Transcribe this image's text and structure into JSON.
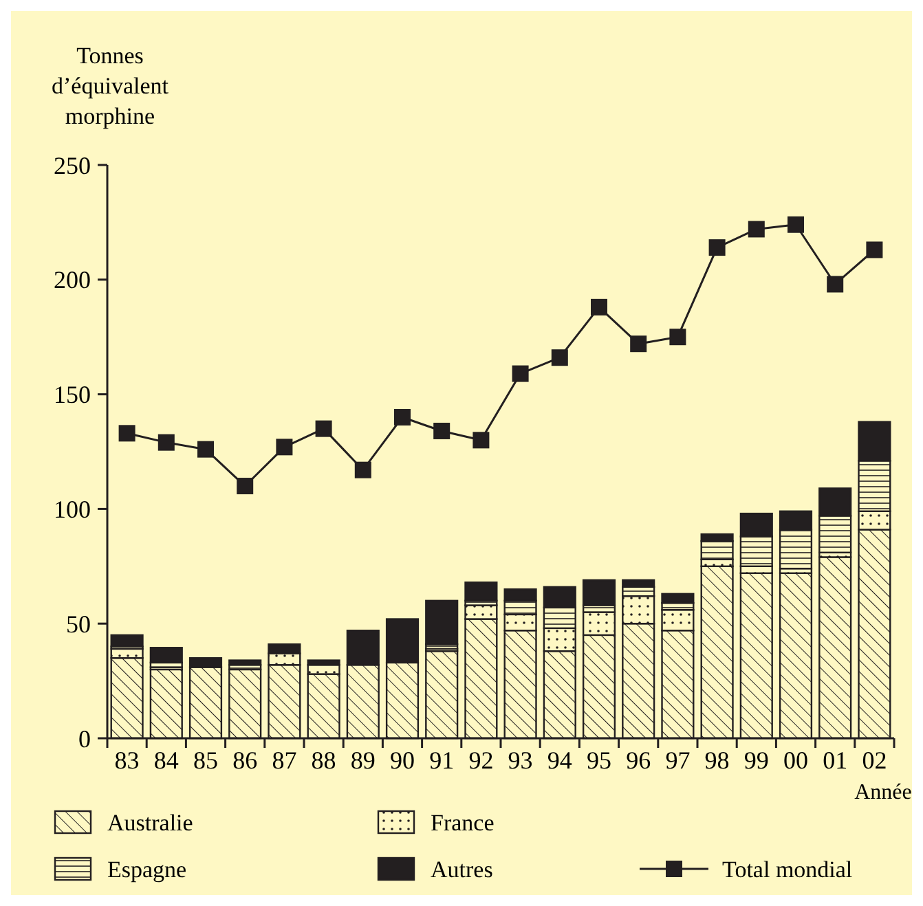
{
  "chart_data": {
    "type": "bar",
    "stacked": true,
    "ylabel": "Tonnes d’équivalent morphine",
    "xlabel": "Année",
    "categories": [
      "83",
      "84",
      "85",
      "86",
      "87",
      "88",
      "89",
      "90",
      "91",
      "92",
      "93",
      "94",
      "95",
      "96",
      "97",
      "98",
      "99",
      "00",
      "01",
      "02"
    ],
    "series": [
      {
        "name": "Australie",
        "color": "#231f20",
        "values": [
          35,
          30,
          31,
          30,
          32,
          28,
          32,
          33,
          38,
          52,
          47,
          38,
          45,
          50,
          47,
          75,
          72,
          72,
          79,
          91
        ]
      },
      {
        "name": "France",
        "color": "#231f20",
        "values": [
          4,
          1,
          0,
          0,
          5,
          4,
          0,
          0,
          1,
          6,
          7,
          10,
          10,
          12,
          9,
          3,
          3,
          2,
          2,
          8
        ]
      },
      {
        "name": "Espagne",
        "color": "#231f20",
        "values": [
          1,
          2,
          0,
          2,
          0,
          0,
          0,
          0,
          2,
          2,
          6,
          9,
          3,
          4,
          3,
          8,
          13,
          17,
          16,
          22
        ]
      },
      {
        "name": "Autres",
        "color": "#231f20",
        "values": [
          5,
          6.5,
          4,
          2,
          4,
          2,
          15,
          19,
          19,
          8,
          5,
          9,
          11,
          3,
          4,
          3,
          10,
          8,
          12,
          17
        ]
      },
      {
        "name": "Total mondial",
        "type": "line",
        "color": "#231f20",
        "values": [
          133,
          129,
          126,
          110,
          127,
          135,
          117,
          140,
          134,
          130,
          159,
          166,
          188,
          172,
          175,
          214,
          222,
          224,
          198,
          213
        ]
      }
    ],
    "ylim": [
      0,
      250
    ],
    "yticks": [
      0,
      50,
      100,
      150,
      200,
      250
    ],
    "grid": false,
    "legend": "bottom",
    "marker": "square",
    "line_style": "solid"
  }
}
